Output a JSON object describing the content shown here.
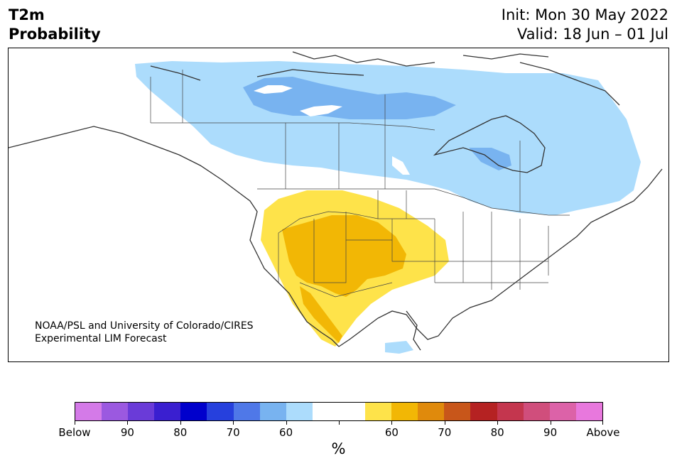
{
  "header": {
    "title_line1": "T2m",
    "title_line2": "Probability",
    "init": "Init: Mon 30 May 2022",
    "valid": "Valid: 18 Jun – 01 Jul"
  },
  "credit": {
    "line1": "NOAA/PSL and University of Colorado/CIRES",
    "line2": "Experimental LIM Forecast"
  },
  "colorbar": {
    "colors": [
      "#d47ae8",
      "#9b59e0",
      "#6a3bd8",
      "#3a1fd0",
      "#0000cc",
      "#2640dd",
      "#4f78e8",
      "#78b3f0",
      "#acdcfc",
      "#ffffff",
      "#ffffff",
      "#fee34a",
      "#f2b705",
      "#e08a0c",
      "#c8561a",
      "#b52222",
      "#c4364e",
      "#d04e7c",
      "#dc62a8",
      "#e878dd"
    ],
    "tick_labels": [
      "Below",
      "90",
      "80",
      "70",
      "60",
      "",
      "60",
      "70",
      "80",
      "90",
      "Above"
    ],
    "unit": "%"
  },
  "map_colors": {
    "light_blue": "#acdcfc",
    "mid_blue": "#78b3f0",
    "yellow": "#fee34a",
    "gold": "#f2b705"
  }
}
